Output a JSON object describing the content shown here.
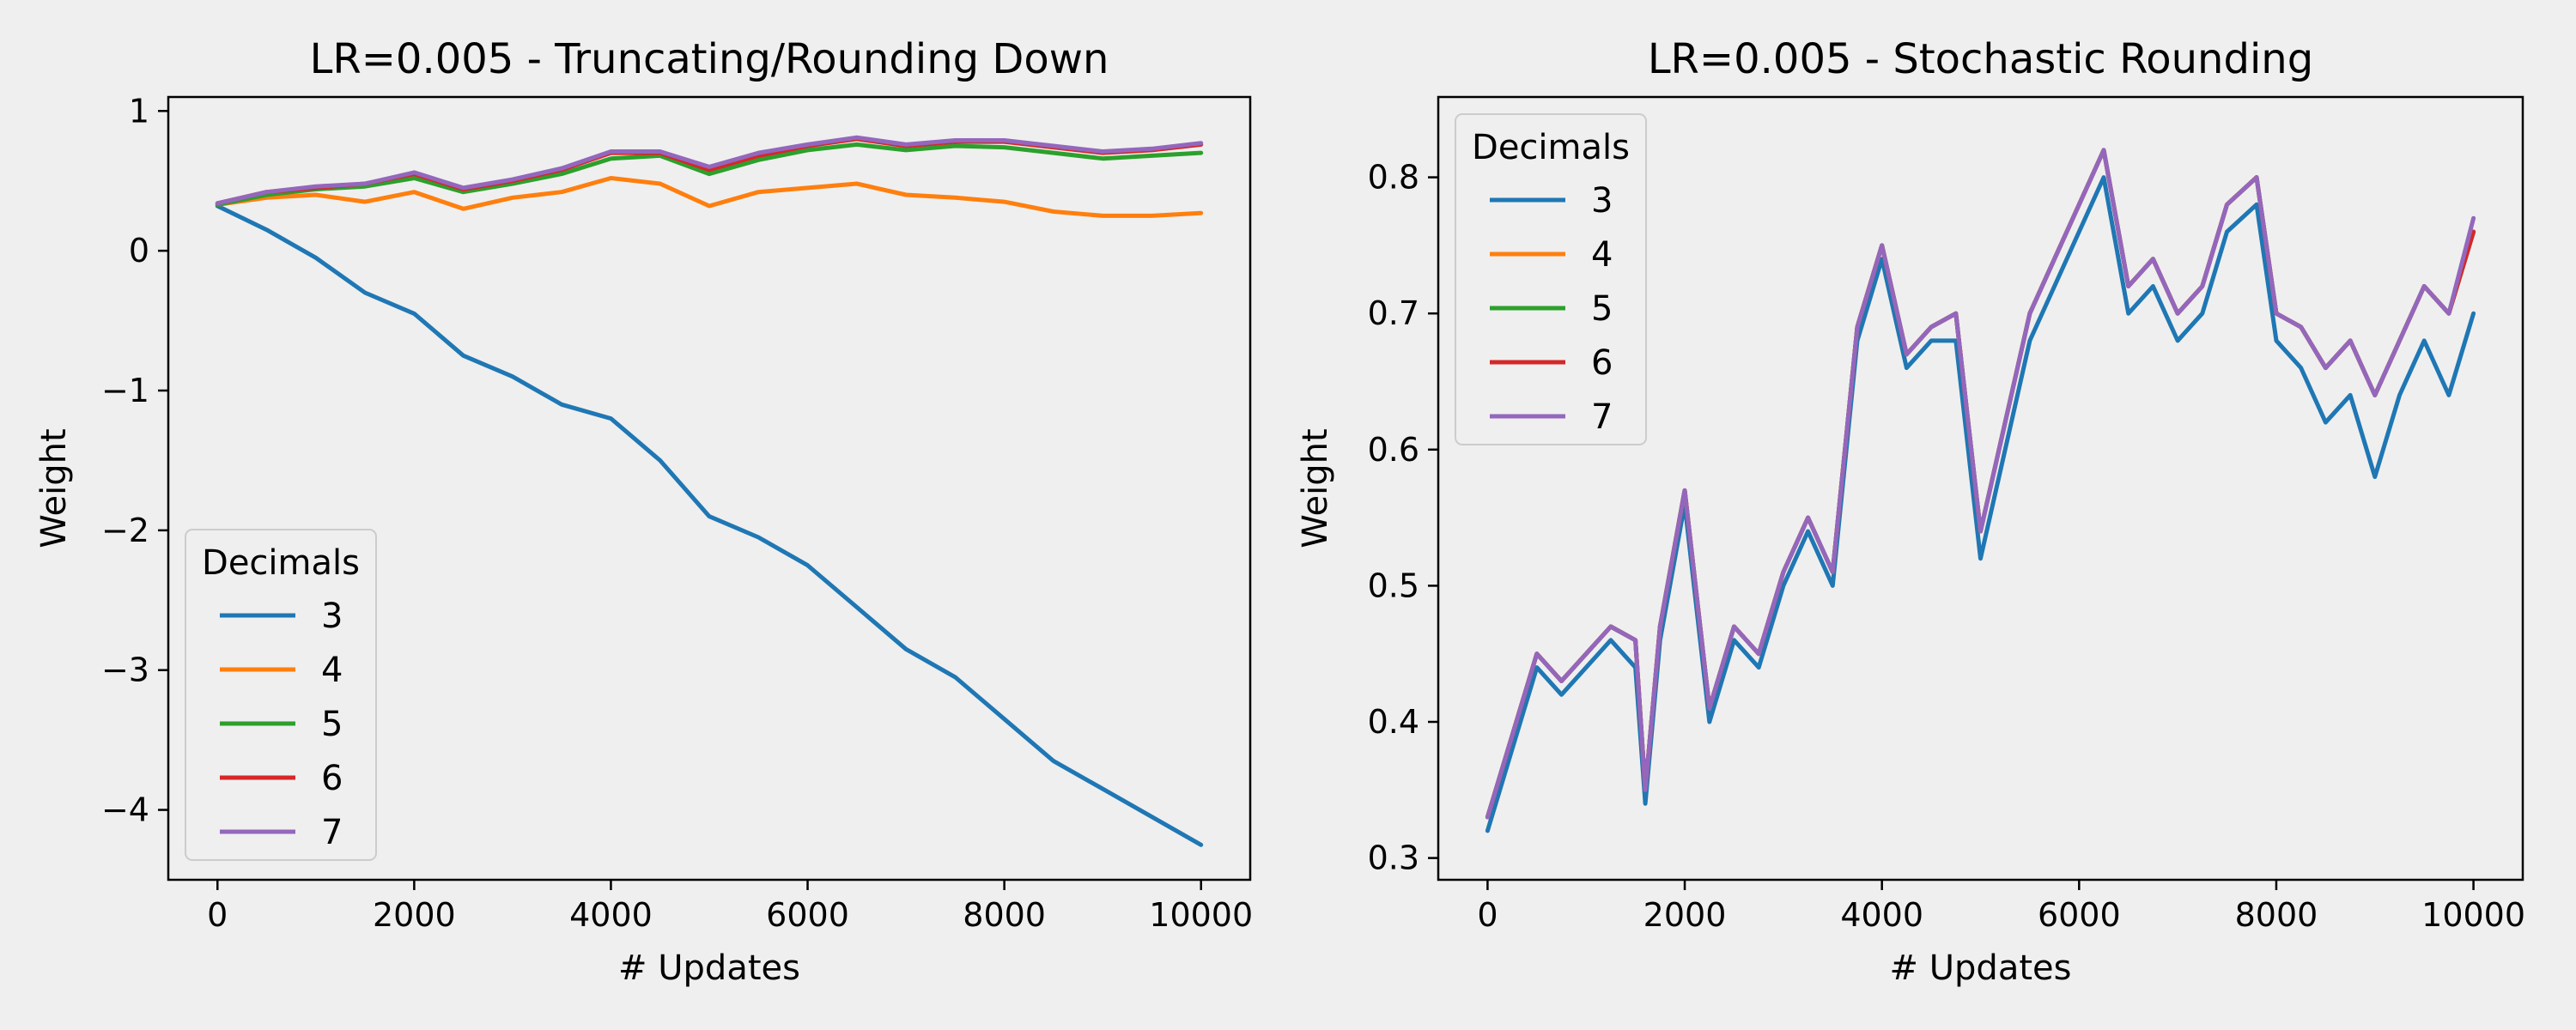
{
  "chart_data": [
    {
      "type": "line",
      "title": "LR=0.005 - Truncating/Rounding Down",
      "xlabel": "# Updates",
      "ylabel": "Weight",
      "xlim": [
        -500,
        10500
      ],
      "ylim": [
        -4.5,
        1.1
      ],
      "xticks": [
        0,
        2000,
        4000,
        6000,
        8000,
        10000
      ],
      "yticks": [
        1,
        0,
        -1,
        -2,
        -3,
        -4
      ],
      "ytick_labels": [
        "1",
        "0",
        "−1",
        "−2",
        "−3",
        "−4"
      ],
      "legend": {
        "title": "Decimals",
        "position": "lower-left"
      },
      "grid": false,
      "series": [
        {
          "name": "3",
          "color": "#1f77b4",
          "x": [
            0,
            500,
            1000,
            1500,
            2000,
            2500,
            3000,
            3500,
            4000,
            4500,
            5000,
            5500,
            6000,
            6500,
            7000,
            7500,
            8000,
            8500,
            9000,
            9500,
            10000
          ],
          "y": [
            0.32,
            0.15,
            -0.05,
            -0.3,
            -0.45,
            -0.75,
            -0.9,
            -1.1,
            -1.2,
            -1.5,
            -1.9,
            -2.05,
            -2.25,
            -2.55,
            -2.85,
            -3.05,
            -3.35,
            -3.65,
            -3.85,
            -4.05,
            -4.25
          ]
        },
        {
          "name": "4",
          "color": "#ff7f0e",
          "x": [
            0,
            500,
            1000,
            1500,
            2000,
            2500,
            3000,
            3500,
            4000,
            4500,
            5000,
            5500,
            6000,
            6500,
            7000,
            7500,
            8000,
            8500,
            9000,
            9500,
            10000
          ],
          "y": [
            0.33,
            0.38,
            0.4,
            0.35,
            0.42,
            0.3,
            0.38,
            0.42,
            0.52,
            0.48,
            0.32,
            0.42,
            0.45,
            0.48,
            0.4,
            0.38,
            0.35,
            0.28,
            0.25,
            0.25,
            0.27
          ]
        },
        {
          "name": "5",
          "color": "#2ca02c",
          "x": [
            0,
            500,
            1000,
            1500,
            2000,
            2500,
            3000,
            3500,
            4000,
            4500,
            5000,
            5500,
            6000,
            6500,
            7000,
            7500,
            8000,
            8500,
            9000,
            9500,
            10000
          ],
          "y": [
            0.33,
            0.4,
            0.44,
            0.46,
            0.52,
            0.42,
            0.48,
            0.55,
            0.66,
            0.68,
            0.55,
            0.65,
            0.72,
            0.76,
            0.72,
            0.75,
            0.74,
            0.7,
            0.66,
            0.68,
            0.7
          ]
        },
        {
          "name": "6",
          "color": "#d62728",
          "x": [
            0,
            500,
            1000,
            1500,
            2000,
            2500,
            3000,
            3500,
            4000,
            4500,
            5000,
            5500,
            6000,
            6500,
            7000,
            7500,
            8000,
            8500,
            9000,
            9500,
            10000
          ],
          "y": [
            0.34,
            0.42,
            0.45,
            0.48,
            0.55,
            0.44,
            0.5,
            0.58,
            0.7,
            0.7,
            0.58,
            0.68,
            0.75,
            0.8,
            0.75,
            0.78,
            0.78,
            0.74,
            0.7,
            0.72,
            0.76
          ]
        },
        {
          "name": "7",
          "color": "#9467bd",
          "x": [
            0,
            500,
            1000,
            1500,
            2000,
            2500,
            3000,
            3500,
            4000,
            4500,
            5000,
            5500,
            6000,
            6500,
            7000,
            7500,
            8000,
            8500,
            9000,
            9500,
            10000
          ],
          "y": [
            0.34,
            0.42,
            0.46,
            0.48,
            0.56,
            0.45,
            0.51,
            0.59,
            0.71,
            0.71,
            0.6,
            0.7,
            0.76,
            0.81,
            0.76,
            0.79,
            0.79,
            0.75,
            0.71,
            0.73,
            0.77
          ]
        }
      ]
    },
    {
      "type": "line",
      "title": "LR=0.005 - Stochastic Rounding",
      "xlabel": "# Updates",
      "ylabel": "Weight",
      "xlim": [
        -500,
        10500
      ],
      "ylim": [
        0.284,
        0.859
      ],
      "xticks": [
        0,
        2000,
        4000,
        6000,
        8000,
        10000
      ],
      "yticks": [
        0.8,
        0.7,
        0.6,
        0.5,
        0.4,
        0.3
      ],
      "ytick_labels": [
        "0.8",
        "0.7",
        "0.6",
        "0.5",
        "0.4",
        "0.3"
      ],
      "legend": {
        "title": "Decimals",
        "position": "upper-left"
      },
      "grid": false,
      "series": [
        {
          "name": "3",
          "color": "#1f77b4",
          "x": [
            0,
            250,
            500,
            750,
            1000,
            1250,
            1500,
            1600,
            1750,
            2000,
            2250,
            2500,
            2750,
            3000,
            3250,
            3500,
            3750,
            4000,
            4250,
            4500,
            4750,
            5000,
            5250,
            5500,
            5750,
            6000,
            6250,
            6500,
            6750,
            7000,
            7250,
            7500,
            7800,
            8000,
            8250,
            8500,
            8750,
            9000,
            9250,
            9500,
            9750,
            10000
          ],
          "y": [
            0.32,
            0.38,
            0.44,
            0.42,
            0.44,
            0.46,
            0.44,
            0.34,
            0.46,
            0.56,
            0.4,
            0.46,
            0.44,
            0.5,
            0.54,
            0.5,
            0.68,
            0.74,
            0.66,
            0.68,
            0.68,
            0.52,
            0.6,
            0.68,
            0.72,
            0.76,
            0.8,
            0.7,
            0.72,
            0.68,
            0.7,
            0.76,
            0.78,
            0.68,
            0.66,
            0.62,
            0.64,
            0.58,
            0.64,
            0.68,
            0.64,
            0.7
          ]
        },
        {
          "name": "4",
          "color": "#ff7f0e",
          "x": [
            0,
            250,
            500,
            750,
            1000,
            1250,
            1500,
            1600,
            1750,
            2000,
            2250,
            2500,
            2750,
            3000,
            3250,
            3500,
            3750,
            4000,
            4250,
            4500,
            4750,
            5000,
            5250,
            5500,
            5750,
            6000,
            6250,
            6500,
            6750,
            7000,
            7250,
            7500,
            7800,
            8000,
            8250,
            8500,
            8750,
            9000,
            9250,
            9500,
            9750,
            10000
          ],
          "y": [
            0.33,
            0.39,
            0.45,
            0.43,
            0.45,
            0.47,
            0.46,
            0.35,
            0.47,
            0.57,
            0.41,
            0.47,
            0.45,
            0.51,
            0.55,
            0.51,
            0.69,
            0.75,
            0.67,
            0.69,
            0.7,
            0.54,
            0.62,
            0.7,
            0.74,
            0.78,
            0.82,
            0.72,
            0.74,
            0.7,
            0.72,
            0.78,
            0.8,
            0.7,
            0.69,
            0.66,
            0.68,
            0.64,
            0.68,
            0.72,
            0.7,
            0.76
          ]
        },
        {
          "name": "5",
          "color": "#2ca02c",
          "x": [
            0,
            250,
            500,
            750,
            1000,
            1250,
            1500,
            1600,
            1750,
            2000,
            2250,
            2500,
            2750,
            3000,
            3250,
            3500,
            3750,
            4000,
            4250,
            4500,
            4750,
            5000,
            5250,
            5500,
            5750,
            6000,
            6250,
            6500,
            6750,
            7000,
            7250,
            7500,
            7800,
            8000,
            8250,
            8500,
            8750,
            9000,
            9250,
            9500,
            9750,
            10000
          ],
          "y": [
            0.33,
            0.39,
            0.45,
            0.43,
            0.45,
            0.47,
            0.46,
            0.35,
            0.47,
            0.57,
            0.41,
            0.47,
            0.45,
            0.51,
            0.55,
            0.51,
            0.69,
            0.75,
            0.67,
            0.69,
            0.7,
            0.54,
            0.62,
            0.7,
            0.74,
            0.78,
            0.82,
            0.72,
            0.74,
            0.7,
            0.72,
            0.78,
            0.8,
            0.7,
            0.69,
            0.66,
            0.68,
            0.64,
            0.68,
            0.72,
            0.7,
            0.76
          ]
        },
        {
          "name": "6",
          "color": "#d62728",
          "x": [
            0,
            250,
            500,
            750,
            1000,
            1250,
            1500,
            1600,
            1750,
            2000,
            2250,
            2500,
            2750,
            3000,
            3250,
            3500,
            3750,
            4000,
            4250,
            4500,
            4750,
            5000,
            5250,
            5500,
            5750,
            6000,
            6250,
            6500,
            6750,
            7000,
            7250,
            7500,
            7800,
            8000,
            8250,
            8500,
            8750,
            9000,
            9250,
            9500,
            9750,
            10000
          ],
          "y": [
            0.33,
            0.39,
            0.45,
            0.43,
            0.45,
            0.47,
            0.46,
            0.35,
            0.47,
            0.57,
            0.41,
            0.47,
            0.45,
            0.51,
            0.55,
            0.51,
            0.69,
            0.75,
            0.67,
            0.69,
            0.7,
            0.54,
            0.62,
            0.7,
            0.74,
            0.78,
            0.82,
            0.72,
            0.74,
            0.7,
            0.72,
            0.78,
            0.8,
            0.7,
            0.69,
            0.66,
            0.68,
            0.64,
            0.68,
            0.72,
            0.7,
            0.76
          ]
        },
        {
          "name": "7",
          "color": "#9467bd",
          "x": [
            0,
            250,
            500,
            750,
            1000,
            1250,
            1500,
            1600,
            1750,
            2000,
            2250,
            2500,
            2750,
            3000,
            3250,
            3500,
            3750,
            4000,
            4250,
            4500,
            4750,
            5000,
            5250,
            5500,
            5750,
            6000,
            6250,
            6500,
            6750,
            7000,
            7250,
            7500,
            7800,
            8000,
            8250,
            8500,
            8750,
            9000,
            9250,
            9500,
            9750,
            10000
          ],
          "y": [
            0.33,
            0.39,
            0.45,
            0.43,
            0.45,
            0.47,
            0.46,
            0.35,
            0.47,
            0.57,
            0.41,
            0.47,
            0.45,
            0.51,
            0.55,
            0.51,
            0.69,
            0.75,
            0.67,
            0.69,
            0.7,
            0.54,
            0.62,
            0.7,
            0.74,
            0.78,
            0.82,
            0.72,
            0.74,
            0.7,
            0.72,
            0.78,
            0.8,
            0.7,
            0.69,
            0.66,
            0.68,
            0.64,
            0.68,
            0.72,
            0.7,
            0.77
          ]
        }
      ]
    }
  ]
}
